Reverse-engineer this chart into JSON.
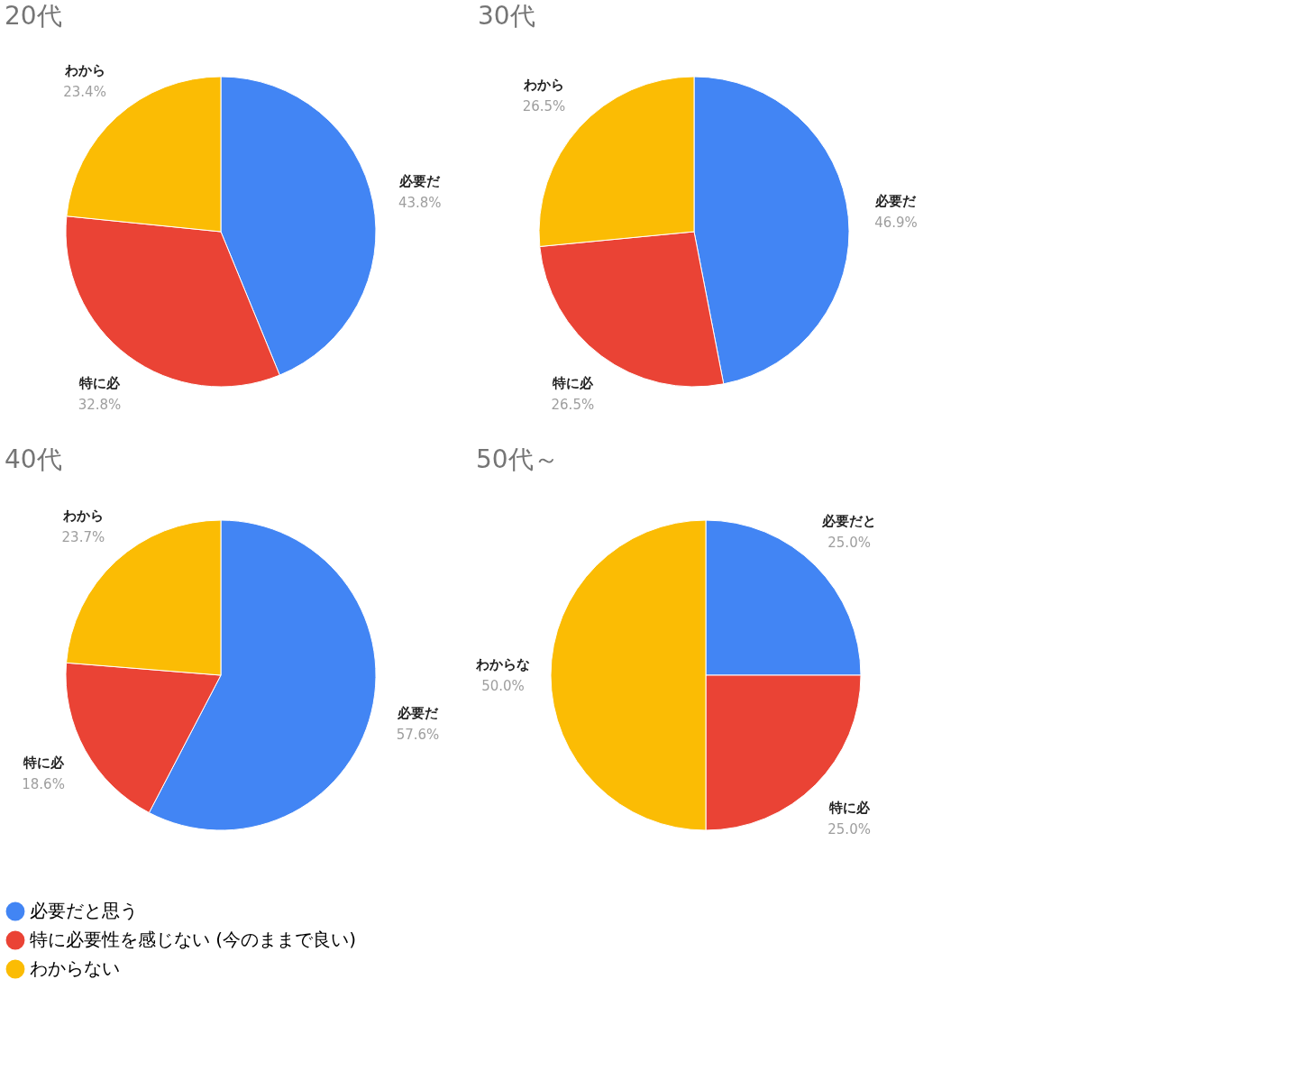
{
  "chart_data": [
    {
      "type": "pie",
      "title": "20代",
      "categories": [
        "必要だ",
        "特に必",
        "わから"
      ],
      "values": [
        43.8,
        32.8,
        23.4
      ],
      "colors": [
        "#4285f4",
        "#ea4335",
        "#fbbc04"
      ],
      "value_labels": [
        "43.8%",
        "32.8%",
        "23.4%"
      ]
    },
    {
      "type": "pie",
      "title": "30代",
      "categories": [
        "必要だ",
        "特に必",
        "わから"
      ],
      "values": [
        46.9,
        26.5,
        26.5
      ],
      "colors": [
        "#4285f4",
        "#ea4335",
        "#fbbc04"
      ],
      "value_labels": [
        "46.9%",
        "26.5%",
        "26.5%"
      ]
    },
    {
      "type": "pie",
      "title": "40代",
      "categories": [
        "必要だと思う",
        "特に必要性を感じない (今のままで良い)",
        "わからない"
      ],
      "values": [
        57.6,
        18.6,
        23.7
      ],
      "colors": [
        "#4285f4",
        "#ea4335",
        "#fbbc04"
      ],
      "value_labels": [
        "57.6%",
        "18.6%",
        "23.7%"
      ],
      "annotations": [
        "必要だ",
        "特に必",
        "わから"
      ],
      "legend": "bottom"
    },
    {
      "type": "pie",
      "title": "50代～",
      "categories": [
        "必要だと",
        "特に必",
        "わからな"
      ],
      "values": [
        25.0,
        25.0,
        50.0
      ],
      "colors": [
        "#4285f4",
        "#ea4335",
        "#fbbc04"
      ],
      "value_labels": [
        "25.0%",
        "25.0%",
        "50.0%"
      ]
    }
  ]
}
